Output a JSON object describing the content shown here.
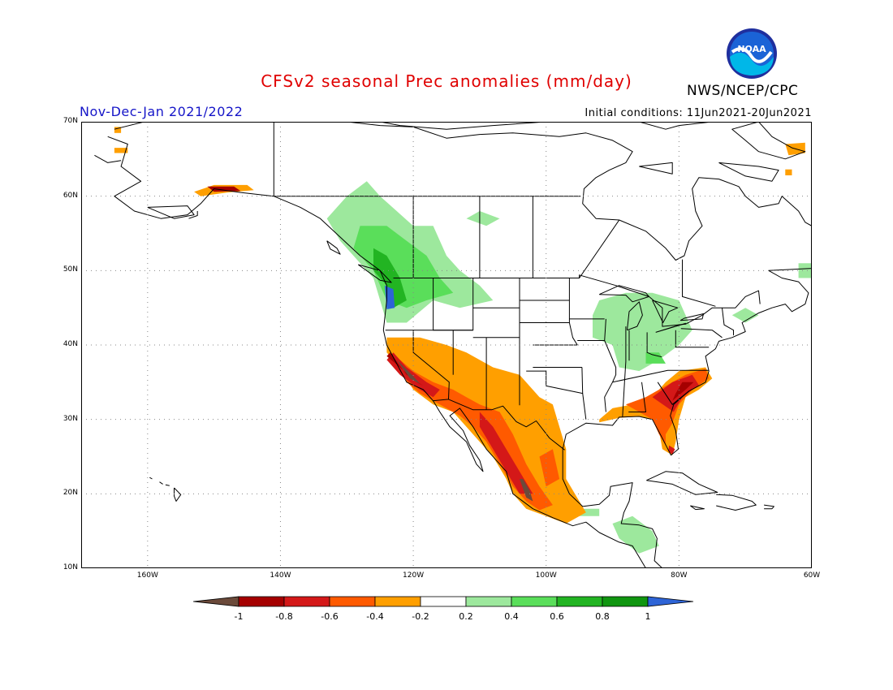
{
  "header": {
    "title": "CFSv2 seasonal Prec anomalies (mm/day)",
    "period": "Nov-Dec-Jan 2021/2022",
    "initial_conditions": "Initial conditions: 11Jun2021-20Jun2021",
    "agency": "NWS/NCEP/CPC",
    "logo_text": "NOAA"
  },
  "map": {
    "lat_labels": [
      "70N",
      "60N",
      "50N",
      "40N",
      "30N",
      "20N",
      "10N"
    ],
    "lon_labels": [
      "160W",
      "140W",
      "120W",
      "100W",
      "80W",
      "60W"
    ],
    "region": "North America",
    "grid": "dotted"
  },
  "legend": {
    "ticks": [
      "-1",
      "-0.8",
      "-0.6",
      "-0.4",
      "-0.2",
      "0.2",
      "0.4",
      "0.6",
      "0.8",
      "1"
    ],
    "colors": [
      "#6b4a3a",
      "#a50000",
      "#d41818",
      "#ff5a00",
      "#ff9f00",
      "#ffffff",
      "#9de89d",
      "#5ade5a",
      "#22b422",
      "#109610",
      "#2e64d6"
    ]
  },
  "anomalies": {
    "dry_regions": [
      "Southwest US",
      "California",
      "Northwest Mexico",
      "Southeast US",
      "Florida",
      "Southern Alaska coast"
    ],
    "wet_regions": [
      "Pacific Northwest",
      "British Columbia",
      "Great Lakes",
      "Ohio Valley",
      "Central America"
    ]
  }
}
